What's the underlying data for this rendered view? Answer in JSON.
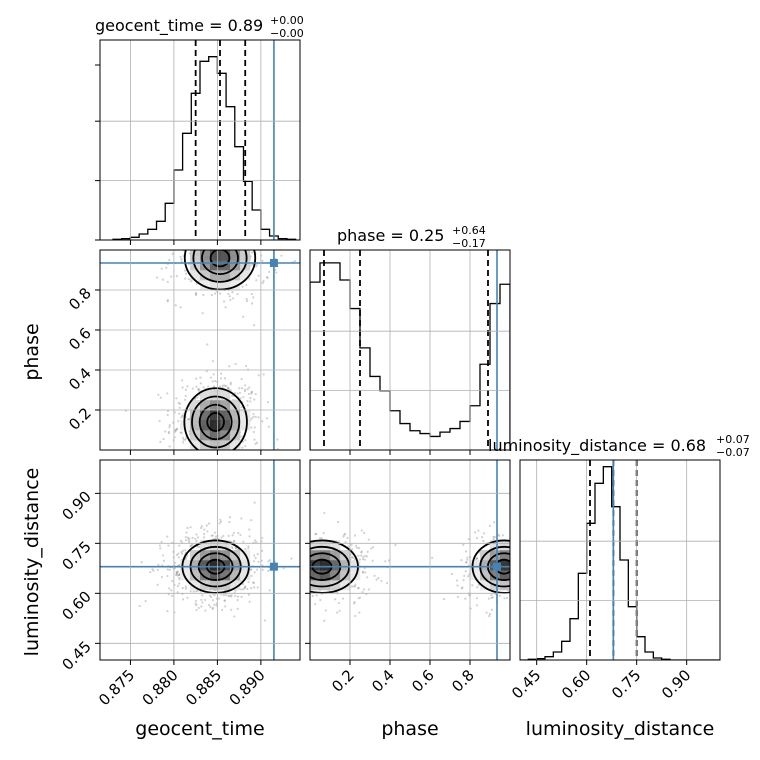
{
  "chart_data": {
    "type": "corner",
    "parameters": [
      "geocent_time",
      "phase",
      "luminosity_distance"
    ],
    "titles": [
      {
        "param": "geocent_time",
        "prefix": "geocent_time = ",
        "median": "0.89",
        "plus": "+0.00",
        "minus": "−0.00"
      },
      {
        "param": "phase",
        "prefix": "phase = ",
        "median": "0.25",
        "plus": "+0.64",
        "minus": "−0.17"
      },
      {
        "param": "luminosity_distance",
        "prefix": "luminosity_distance = ",
        "median": "0.68",
        "plus": "+0.07",
        "minus": "−0.07"
      }
    ],
    "axes": {
      "geocent_time": {
        "range": [
          0.8715,
          0.8945
        ],
        "ticks": [
          "0.875",
          "0.880",
          "0.885",
          "0.890"
        ],
        "tick_values": [
          0.875,
          0.88,
          0.885,
          0.89
        ]
      },
      "phase": {
        "range": [
          0.0,
          1.0
        ],
        "ticks_x": [
          "0.2",
          "0.4",
          "0.6",
          "0.8"
        ],
        "ticks_y": [
          "0.2",
          "0.4",
          "0.6",
          "0.8"
        ],
        "tick_values": [
          0.2,
          0.4,
          0.6,
          0.8
        ]
      },
      "luminosity_distance": {
        "range": [
          0.4,
          1.0
        ],
        "ticks": [
          "0.45",
          "0.60",
          "0.75",
          "0.90"
        ],
        "tick_values": [
          0.45,
          0.6,
          0.75,
          0.9
        ]
      }
    },
    "truths": {
      "geocent_time": 0.8915,
      "phase": 0.935,
      "luminosity_distance": 0.68
    },
    "quantiles": {
      "geocent_time": [
        0.8825,
        0.8853,
        0.8882
      ],
      "phase": [
        0.07,
        0.25,
        0.89
      ],
      "luminosity_distance": [
        0.61,
        0.68,
        0.75
      ]
    },
    "histograms": {
      "geocent_time": {
        "bin_edges": [
          0.873,
          0.874,
          0.875,
          0.876,
          0.877,
          0.878,
          0.879,
          0.88,
          0.881,
          0.882,
          0.883,
          0.884,
          0.885,
          0.886,
          0.887,
          0.888,
          0.889,
          0.89,
          0.891,
          0.892,
          0.893,
          0.894
        ],
        "values": [
          1,
          2,
          4,
          9,
          16,
          28,
          55,
          105,
          160,
          220,
          268,
          275,
          250,
          200,
          140,
          88,
          45,
          16,
          6,
          2,
          1
        ],
        "ymax": 300
      },
      "phase": {
        "bin_edges": [
          0.0,
          0.05,
          0.1,
          0.15,
          0.2,
          0.25,
          0.3,
          0.35,
          0.4,
          0.45,
          0.5,
          0.55,
          0.6,
          0.65,
          0.7,
          0.75,
          0.8,
          0.85,
          0.9,
          0.95,
          1.0
        ],
        "values": [
          235,
          262,
          262,
          238,
          198,
          143,
          103,
          83,
          55,
          37,
          27,
          23,
          19,
          25,
          30,
          40,
          62,
          120,
          205,
          232
        ],
        "ymax": 280
      },
      "luminosity_distance": {
        "bin_edges": [
          0.4,
          0.425,
          0.45,
          0.475,
          0.5,
          0.525,
          0.55,
          0.575,
          0.6,
          0.625,
          0.65,
          0.675,
          0.7,
          0.725,
          0.75,
          0.775,
          0.8,
          0.825,
          0.85,
          0.875,
          0.9,
          0.925,
          0.95,
          0.975,
          1.0
        ],
        "values": [
          0,
          1,
          2,
          5,
          12,
          28,
          62,
          130,
          205,
          265,
          290,
          230,
          150,
          80,
          35,
          12,
          3,
          1,
          0,
          0,
          0,
          0,
          0,
          0
        ],
        "ymax": 300
      }
    }
  }
}
